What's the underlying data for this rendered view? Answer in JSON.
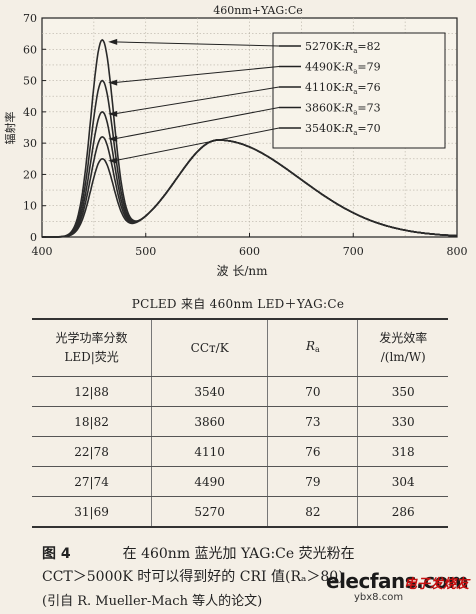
{
  "chart_data": {
    "type": "line",
    "title": "460nm+YAG:Ce",
    "xlabel": "波 长/nm",
    "ylabel": "辐射率",
    "xlim": [
      400,
      800
    ],
    "ylim": [
      0,
      70
    ],
    "x_ticks": [
      400,
      500,
      600,
      700,
      800
    ],
    "y_ticks": [
      0,
      10,
      20,
      30,
      40,
      50,
      60,
      70
    ],
    "legend_position": "top-right",
    "series": [
      {
        "name": "5270K:Ra=82",
        "blue_peak_nm": 458,
        "blue_peak": 63,
        "phosphor_peak_nm": 570,
        "phosphor_peak": 31
      },
      {
        "name": "4490K:Ra=79",
        "blue_peak_nm": 458,
        "blue_peak": 50,
        "phosphor_peak_nm": 570,
        "phosphor_peak": 31
      },
      {
        "name": "4110K:Ra=76",
        "blue_peak_nm": 458,
        "blue_peak": 40,
        "phosphor_peak_nm": 570,
        "phosphor_peak": 31
      },
      {
        "name": "3860K:Ra=73",
        "blue_peak_nm": 458,
        "blue_peak": 32,
        "phosphor_peak_nm": 570,
        "phosphor_peak": 31
      },
      {
        "name": "3540K:Ra=70",
        "blue_peak_nm": 458,
        "blue_peak": 25,
        "phosphor_peak_nm": 570,
        "phosphor_peak": 31
      }
    ],
    "legend": [
      {
        "prefix": "5270K:",
        "r": "R",
        "sub": "a",
        "suffix": "=82"
      },
      {
        "prefix": "4490K:",
        "r": "R",
        "sub": "a",
        "suffix": "=79"
      },
      {
        "prefix": "4110K:",
        "r": "R",
        "sub": "a",
        "suffix": "=76"
      },
      {
        "prefix": "3860K:",
        "r": "R",
        "sub": "a",
        "suffix": "=73"
      },
      {
        "prefix": "3540K:",
        "r": "R",
        "sub": "a",
        "suffix": "=70"
      }
    ]
  },
  "table": {
    "title": "PCLED 来自 460nm LED＋YAG:Ce",
    "headers": {
      "col1_line1": "光学功率分数",
      "col1_line2": "LED|荧光",
      "col2": "CCт/K",
      "col3_main": "R",
      "col3_sub": "a",
      "col4_line1": "发光效率",
      "col4_line2": "/(lm/W)"
    },
    "rows": [
      [
        "12|88",
        "3540",
        "70",
        "350"
      ],
      [
        "18|82",
        "3860",
        "73",
        "330"
      ],
      [
        "22|78",
        "4110",
        "76",
        "318"
      ],
      [
        "27|74",
        "4490",
        "79",
        "304"
      ],
      [
        "31|69",
        "5270",
        "82",
        "286"
      ]
    ]
  },
  "caption": {
    "fig_label": "图 4",
    "line1": "在 460nm 蓝光加 YAG:Ce 荧光粉在",
    "line2": "CCT＞5000K 时可以得到好的 CRI 值(Rₐ＞80)",
    "line3": "(引自 R. Mueller-Mach 等人的论文)"
  },
  "watermark": {
    "site": "elecfans.com",
    "cn": "电子发烧友",
    "url": "ybx8.com"
  }
}
